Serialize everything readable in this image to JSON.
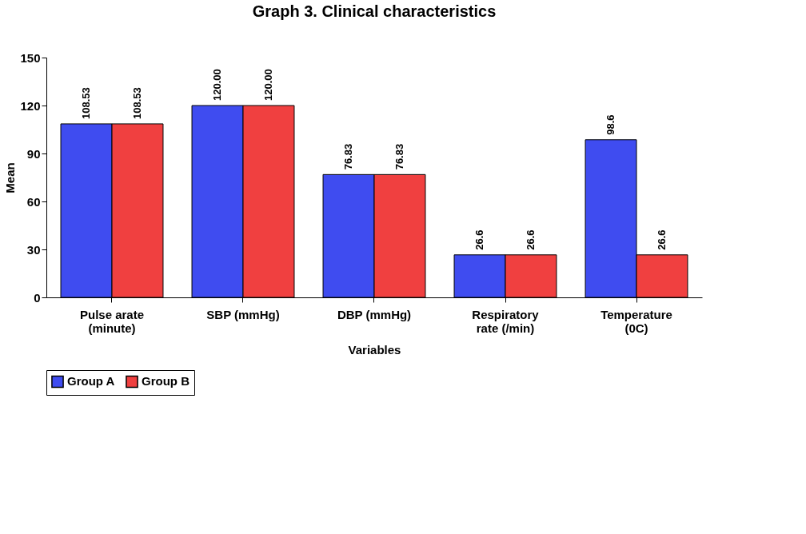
{
  "chart_data": {
    "type": "bar",
    "title": "Graph 3. Clinical characteristics",
    "xlabel": "Variables",
    "ylabel": "Mean",
    "categories": [
      "Pulse arate (minute)",
      "SBP (mmHg)",
      "DBP (mmHg)",
      "Respiratory rate (/min)",
      "Temperature (0C)"
    ],
    "series": [
      {
        "name": "Group A",
        "color": "#3f4cf0",
        "values": [
          108.53,
          120.0,
          76.83,
          26.6,
          98.6
        ],
        "value_labels": [
          "108.53",
          "120.00",
          "76.83",
          "26.6",
          "98.6"
        ]
      },
      {
        "name": "Group B",
        "color": "#f04040",
        "values": [
          108.53,
          120.0,
          76.83,
          26.6,
          26.6
        ],
        "value_labels": [
          "108.53",
          "120.00",
          "76.83",
          "26.6",
          "26.6"
        ]
      }
    ],
    "ylim": [
      0,
      150
    ],
    "yticks": [
      0,
      30,
      60,
      90,
      120,
      150
    ],
    "grid": false,
    "legend": "bottom"
  }
}
